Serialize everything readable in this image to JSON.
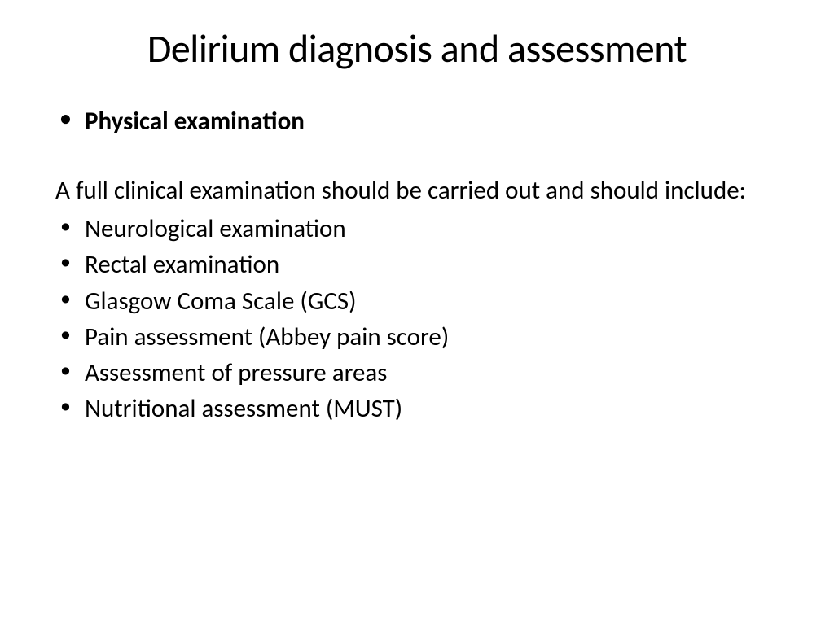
{
  "slide": {
    "title": "Delirium diagnosis and assessment",
    "section_header": "Physical examination",
    "intro_text": "A full clinical examination should be carried out and should include:",
    "items": [
      "Neurological examination",
      "Rectal examination",
      "Glasgow Coma Scale (GCS)",
      "Pain assessment (Abbey pain score)",
      "Assessment of pressure areas",
      "Nutritional assessment (MUST)"
    ]
  },
  "styling": {
    "background_color": "#ffffff",
    "text_color": "#000000",
    "title_fontsize": 48,
    "body_fontsize": 31,
    "font_family": "Calibri"
  }
}
